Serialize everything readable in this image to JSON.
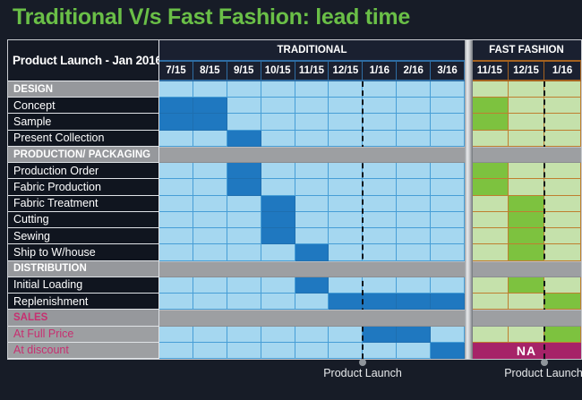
{
  "colors": {
    "bg": "#171c27",
    "title_green": "#6abf47",
    "light_blue": "#a5d7f0",
    "dark_blue": "#1f78c0",
    "blue_border": "#479ed6",
    "blue_line": "#2e6da3",
    "light_green": "#c5e1ab",
    "dark_green": "#7dc23f",
    "orange_border": "#bf7e30",
    "orange_line": "#a5621f",
    "band_gray": "#9d9fa2",
    "section_gray": "#96989c",
    "label_dark": "#10151f",
    "header_dark": "#1a2030",
    "magenta": "#a62368",
    "pink": "#c72f70"
  },
  "chart_data": {
    "type": "table",
    "subtype": "gantt",
    "title": "Traditional V/s Fast Fashion: lead time",
    "corner_label": "Product Launch - Jan 2016",
    "na_label": "NA",
    "launch_marker_label": "Product Launch",
    "sections": {
      "traditional": {
        "name": "TRADITIONAL",
        "months": [
          "7/15",
          "8/15",
          "9/15",
          "10/15",
          "11/15",
          "12/15",
          "1/16",
          "2/16",
          "3/16"
        ],
        "launch_before_month": "1/16"
      },
      "fast_fashion": {
        "name": "FAST FASHION",
        "months": [
          "11/15",
          "12/15",
          "1/16"
        ],
        "launch_before_month": "1/16"
      }
    },
    "rows": [
      {
        "label": "DESIGN",
        "type": "section-label",
        "traditional": null,
        "fast_fashion": null
      },
      {
        "label": "Concept",
        "type": "task",
        "traditional": [
          "7/15",
          "8/15"
        ],
        "fast_fashion": [
          "11/15",
          "11/15"
        ]
      },
      {
        "label": "Sample",
        "type": "task",
        "traditional": [
          "7/15",
          "8/15"
        ],
        "fast_fashion": [
          "11/15",
          "11/15"
        ]
      },
      {
        "label": "Present Collection",
        "type": "task",
        "traditional": [
          "9/15",
          "9/15"
        ],
        "fast_fashion": null
      },
      {
        "label": "PRODUCTION/ PACKAGING",
        "type": "section-band",
        "traditional": null,
        "fast_fashion": null
      },
      {
        "label": "Production Order",
        "type": "task",
        "traditional": [
          "9/15",
          "9/15"
        ],
        "fast_fashion": [
          "11/15",
          "11/15"
        ]
      },
      {
        "label": "Fabric Production",
        "type": "task",
        "traditional": [
          "9/15",
          "9/15"
        ],
        "fast_fashion": [
          "11/15",
          "11/15"
        ]
      },
      {
        "label": "Fabric Treatment",
        "type": "task",
        "traditional": [
          "10/15",
          "10/15"
        ],
        "fast_fashion": [
          "12/15",
          "12/15"
        ]
      },
      {
        "label": "Cutting",
        "type": "task",
        "traditional": [
          "10/15",
          "10/15"
        ],
        "fast_fashion": [
          "12/15",
          "12/15"
        ]
      },
      {
        "label": "Sewing",
        "type": "task",
        "traditional": [
          "10/15",
          "10/15"
        ],
        "fast_fashion": [
          "12/15",
          "12/15"
        ]
      },
      {
        "label": "Ship to W/house",
        "type": "task",
        "traditional": [
          "11/15",
          "11/15"
        ],
        "fast_fashion": [
          "12/15",
          "12/15"
        ]
      },
      {
        "label": "DISTRIBUTION",
        "type": "section-band",
        "traditional": null,
        "fast_fashion": null
      },
      {
        "label": "Initial Loading",
        "type": "task",
        "traditional": [
          "11/15",
          "11/15"
        ],
        "fast_fashion": [
          "12/15",
          "12/15"
        ]
      },
      {
        "label": "Replenishment",
        "type": "task",
        "traditional": [
          "12/15",
          "3/16"
        ],
        "fast_fashion": [
          "1/16",
          "1/16"
        ]
      },
      {
        "label": "SALES",
        "type": "section-band",
        "traditional": null,
        "fast_fashion": null
      },
      {
        "label": "At Full Price",
        "type": "sales-task",
        "traditional": [
          "1/16",
          "2/16"
        ],
        "fast_fashion": [
          "1/16",
          "1/16"
        ]
      },
      {
        "label": "At discount",
        "type": "sales-task",
        "traditional": [
          "3/16",
          "3/16"
        ],
        "fast_fashion": "NA"
      }
    ]
  }
}
